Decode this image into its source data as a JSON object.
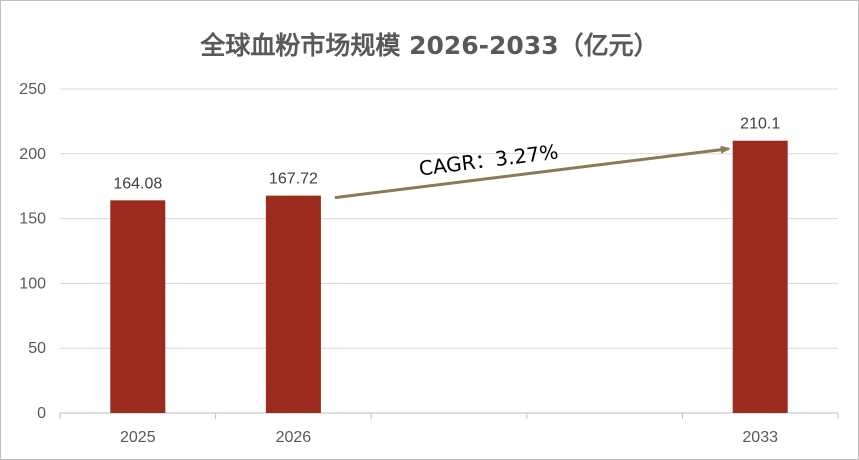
{
  "chart_data": {
    "type": "bar",
    "title": "全球血粉市场规模 2026-2033（亿元）",
    "categories": [
      "2025",
      "2026",
      "",
      "",
      "2033"
    ],
    "values": [
      164.08,
      167.72,
      null,
      null,
      210.1
    ],
    "data_labels": [
      "164.08",
      "167.72",
      "",
      "",
      "210.1"
    ],
    "ylim": [
      0,
      250
    ],
    "yticks": [
      0,
      50,
      100,
      150,
      200,
      250
    ],
    "grid": true,
    "legend": "none",
    "bar_color": "#9b2a1f",
    "annotation": {
      "text": "CAGR：3.27%",
      "from_category": "2026",
      "to_category": "2033",
      "arrow_color": "#8b7a55"
    }
  }
}
